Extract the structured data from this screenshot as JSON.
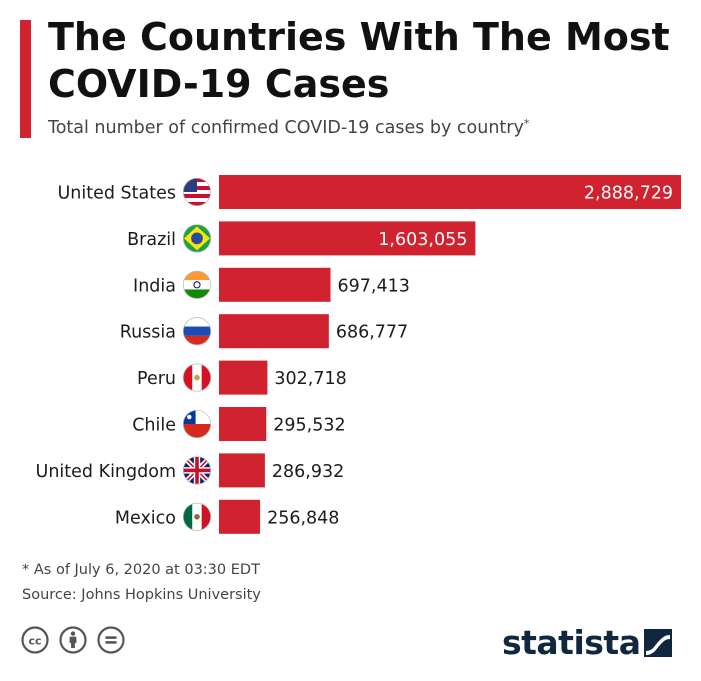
{
  "header": {
    "title_line1": "The Countries With The Most",
    "title_line2": "COVID-19 Cases",
    "subtitle": "Total number of confirmed COVID-19 cases by country",
    "subtitle_mark": "*"
  },
  "chart_data": {
    "type": "bar",
    "orientation": "horizontal",
    "categories": [
      "United States",
      "Brazil",
      "India",
      "Russia",
      "Peru",
      "Chile",
      "United Kingdom",
      "Mexico"
    ],
    "values": [
      2888729,
      1603055,
      697413,
      686777,
      302718,
      295532,
      286932,
      256848
    ],
    "value_labels": [
      "2,888,729",
      "1,603,055",
      "697,413",
      "686,777",
      "302,718",
      "295,532",
      "286,932",
      "256,848"
    ],
    "flags": [
      "us-flag-icon",
      "brazil-flag-icon",
      "india-flag-icon",
      "russia-flag-icon",
      "peru-flag-icon",
      "chile-flag-icon",
      "uk-flag-icon",
      "mexico-flag-icon"
    ],
    "xlim": [
      0,
      2888729
    ],
    "bar_color": "#d1222f",
    "grid": false,
    "legend": false
  },
  "footer": {
    "note": "* As of July 6, 2020 at 03:30 EDT",
    "source": "Source: Johns Hopkins University",
    "cc_icons": [
      "creative-commons-icon",
      "attribution-icon",
      "no-derivatives-icon"
    ],
    "cc_label": "cc",
    "brand": "statista"
  },
  "colors": {
    "accent": "#d1222f",
    "brand": "#0f2840",
    "text": "#1c1c1c"
  }
}
